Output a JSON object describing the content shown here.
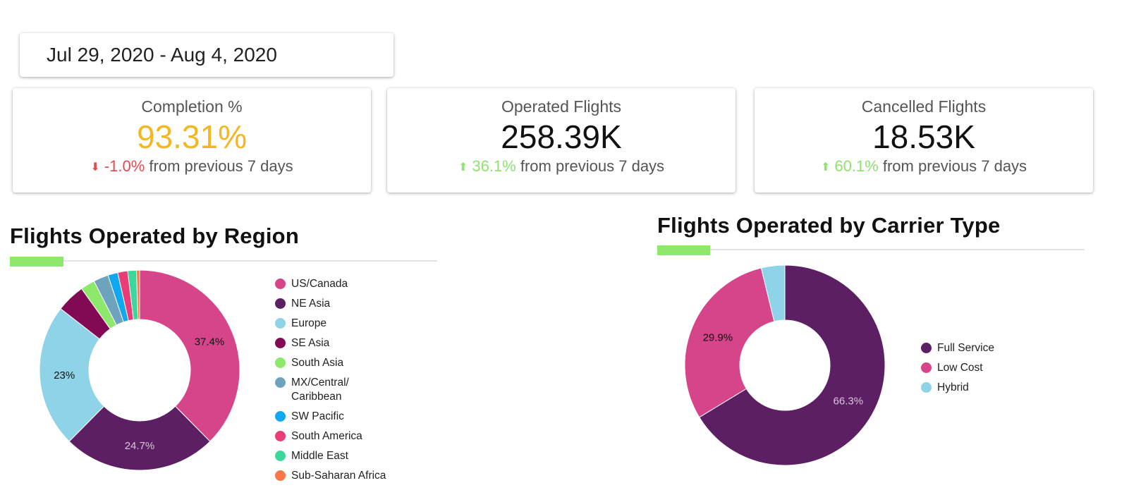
{
  "date_range": "Jul 29, 2020 - Aug 4, 2020",
  "kpis": [
    {
      "title": "Completion %",
      "value": "93.31%",
      "value_color": "#f4b724",
      "direction": "down",
      "arrow": "⬇",
      "delta": "-1.0%",
      "suffix": "from previous 7 days"
    },
    {
      "title": "Operated Flights",
      "value": "258.39K",
      "value_color": "#111111",
      "direction": "up",
      "arrow": "⬆",
      "delta": "36.1%",
      "suffix": "from previous 7 days"
    },
    {
      "title": "Cancelled Flights",
      "value": "18.53K",
      "value_color": "#111111",
      "direction": "up",
      "arrow": "⬆",
      "delta": "60.1%",
      "suffix": "from previous 7 days"
    }
  ],
  "chart_data": [
    {
      "type": "pie",
      "title": "Flights Operated by Region",
      "donut": true,
      "legend_position": "right",
      "slices": [
        {
          "label": "US/Canada",
          "value": 37.4,
          "color": "#d6448a",
          "display": "37.4%",
          "label_color": "#111111"
        },
        {
          "label": "NE Asia",
          "value": 24.7,
          "color": "#5c1f63",
          "display": "24.7%",
          "label_color": "#d9c7dc"
        },
        {
          "label": "Europe",
          "value": 23.0,
          "color": "#8fd3e8",
          "display": "23%",
          "label_color": "#111111"
        },
        {
          "label": "SE Asia",
          "value": 4.6,
          "color": "#820a55",
          "display": "",
          "label_color": "#111111"
        },
        {
          "label": "South Asia",
          "value": 2.3,
          "color": "#8de86b",
          "display": "",
          "label_color": "#111111"
        },
        {
          "label": "MX/Central/\nCaribbean",
          "value": 2.4,
          "color": "#6ea3bd",
          "display": "",
          "label_color": "#111111"
        },
        {
          "label": "SW Pacific",
          "value": 1.6,
          "color": "#12a8f0",
          "display": "",
          "label_color": "#111111"
        },
        {
          "label": "South America",
          "value": 1.6,
          "color": "#ea3d78",
          "display": "",
          "label_color": "#111111"
        },
        {
          "label": "Middle East",
          "value": 1.4,
          "color": "#3dd69b",
          "display": "",
          "label_color": "#111111"
        },
        {
          "label": "Sub-Saharan Africa",
          "value": 0.5,
          "color": "#fb7748",
          "display": "",
          "label_color": "#111111"
        }
      ]
    },
    {
      "type": "pie",
      "title": "Flights Operated by Carrier Type",
      "donut": true,
      "legend_position": "right",
      "slices": [
        {
          "label": "Full Service",
          "value": 66.3,
          "color": "#5c1f63",
          "display": "66.3%",
          "label_color": "#d9c7dc"
        },
        {
          "label": "Low Cost",
          "value": 29.9,
          "color": "#d6448a",
          "display": "29.9%",
          "label_color": "#111111"
        },
        {
          "label": "Hybrid",
          "value": 3.8,
          "color": "#8fd3e8",
          "display": "",
          "label_color": "#111111"
        }
      ]
    }
  ]
}
